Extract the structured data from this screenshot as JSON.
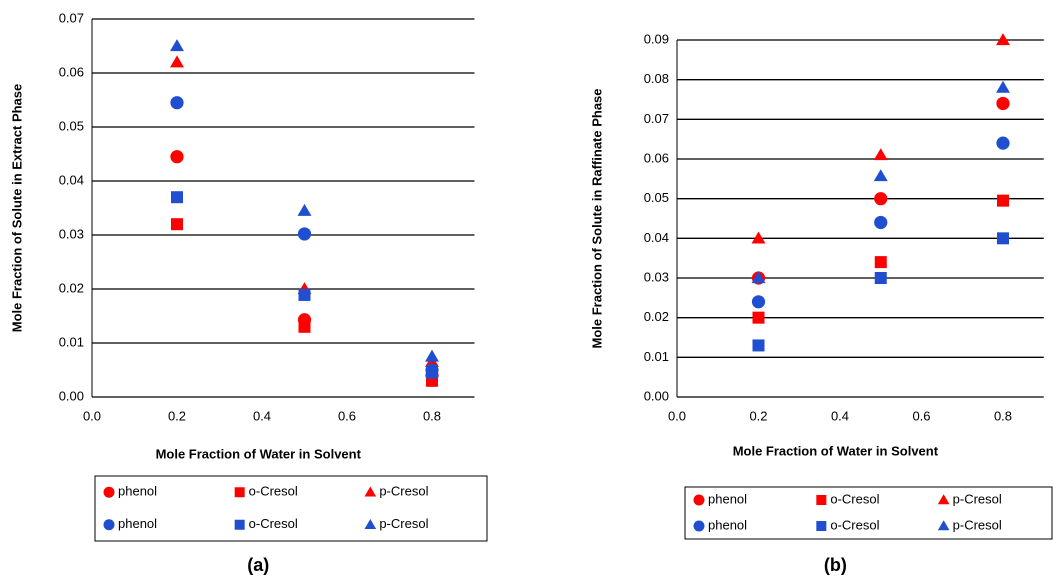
{
  "chart_data": [
    {
      "type": "scatter",
      "caption": "(a)",
      "x_label": "Mole Fraction of Water in Solvent",
      "y_label": "Mole Fraction of Solute in Extract Phase",
      "x": [
        0.2,
        0.5,
        0.8
      ],
      "xlim": [
        0,
        0.9
      ],
      "xticks": [
        {
          "value": 0,
          "label": "0.0"
        },
        {
          "value": 0.2,
          "label": "0.2"
        },
        {
          "value": 0.4,
          "label": "0.4"
        },
        {
          "value": 0.6,
          "label": "0.6"
        },
        {
          "value": 0.8,
          "label": "0.8"
        }
      ],
      "ylim": [
        0,
        0.07
      ],
      "yticks": [
        {
          "value": 0,
          "label": "0.00"
        },
        {
          "value": 0.01,
          "label": "0.01"
        },
        {
          "value": 0.02,
          "label": "0.02"
        },
        {
          "value": 0.03,
          "label": "0.03"
        },
        {
          "value": 0.04,
          "label": "0.04"
        },
        {
          "value": 0.05,
          "label": "0.05"
        },
        {
          "value": 0.06,
          "label": "0.06"
        },
        {
          "value": 0.07,
          "label": "0.07"
        }
      ],
      "grid": true,
      "series": [
        {
          "name": "phenol",
          "color": "#ff0000",
          "marker": "circle",
          "values": [
            0.0445,
            0.0143,
            0.004
          ]
        },
        {
          "name": "o-Cresol",
          "color": "#ff0000",
          "marker": "square",
          "values": [
            0.032,
            0.013,
            0.003
          ]
        },
        {
          "name": "p-Cresol",
          "color": "#ff0000",
          "marker": "triangle",
          "values": [
            0.062,
            0.02,
            0.0065
          ]
        },
        {
          "name": "phenol",
          "color": "#1f4fd0",
          "marker": "circle",
          "values": [
            0.0545,
            0.0302,
            0.005
          ]
        },
        {
          "name": "o-Cresol",
          "color": "#1f4fd0",
          "marker": "square",
          "values": [
            0.037,
            0.0189,
            0.0045
          ]
        },
        {
          "name": "p-Cresol",
          "color": "#1f4fd0",
          "marker": "triangle",
          "values": [
            0.065,
            0.0345,
            0.0075
          ]
        }
      ]
    },
    {
      "type": "scatter",
      "caption": "(b)",
      "x_label": "Mole Fraction of Water in Solvent",
      "y_label": "Mole Fraction of Solute in Raffinate Phase",
      "x": [
        0.2,
        0.5,
        0.8
      ],
      "xlim": [
        0,
        0.9
      ],
      "xticks": [
        {
          "value": 0,
          "label": "0.0"
        },
        {
          "value": 0.2,
          "label": "0.2"
        },
        {
          "value": 0.4,
          "label": "0.4"
        },
        {
          "value": 0.6,
          "label": "0.6"
        },
        {
          "value": 0.8,
          "label": "0.8"
        }
      ],
      "ylim": [
        0,
        0.09
      ],
      "yticks": [
        {
          "value": 0,
          "label": "0.00"
        },
        {
          "value": 0.01,
          "label": "0.01"
        },
        {
          "value": 0.02,
          "label": "0.02"
        },
        {
          "value": 0.03,
          "label": "0.03"
        },
        {
          "value": 0.04,
          "label": "0.04"
        },
        {
          "value": 0.05,
          "label": "0.05"
        },
        {
          "value": 0.06,
          "label": "0.06"
        },
        {
          "value": 0.07,
          "label": "0.07"
        },
        {
          "value": 0.08,
          "label": "0.08"
        },
        {
          "value": 0.09,
          "label": "0.09"
        }
      ],
      "grid": true,
      "series": [
        {
          "name": "phenol",
          "color": "#ff0000",
          "marker": "circle",
          "values": [
            0.03,
            0.05,
            0.074
          ]
        },
        {
          "name": "o-Cresol",
          "color": "#ff0000",
          "marker": "square",
          "values": [
            0.02,
            0.034,
            0.0495
          ]
        },
        {
          "name": "p-Cresol",
          "color": "#ff0000",
          "marker": "triangle",
          "values": [
            0.04,
            0.061,
            0.09
          ]
        },
        {
          "name": "phenol",
          "color": "#1f4fd0",
          "marker": "circle",
          "values": [
            0.024,
            0.044,
            0.064
          ]
        },
        {
          "name": "o-Cresol",
          "color": "#1f4fd0",
          "marker": "square",
          "values": [
            0.013,
            0.03,
            0.04
          ]
        },
        {
          "name": "p-Cresol",
          "color": "#1f4fd0",
          "marker": "triangle",
          "values": [
            0.03,
            0.0557,
            0.078
          ]
        }
      ]
    }
  ]
}
